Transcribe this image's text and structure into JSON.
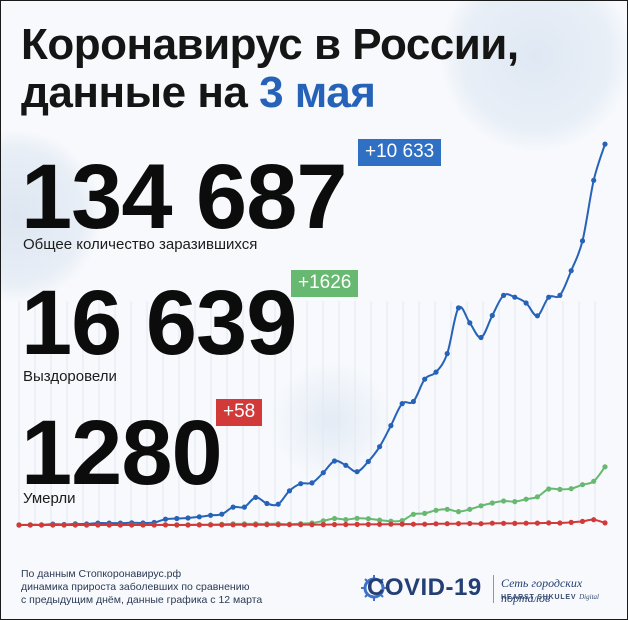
{
  "header": {
    "title_line1": "Коронавирус в России,",
    "title_line2_prefix": "данные на ",
    "title_line2_accent": "3 мая"
  },
  "stats": [
    {
      "value": "134 687",
      "delta": "+10 633",
      "label": "Общее количество заразившихся",
      "color": "#2f6fc4"
    },
    {
      "value": "16 639",
      "delta": "+1626",
      "label": "Выздоровели",
      "color": "#67b870"
    },
    {
      "value": "1280",
      "delta": "+58",
      "label": "Умерли",
      "color": "#d23a3a"
    }
  ],
  "footer": {
    "line1": "По данным Стопкоронавирус.рф",
    "line2": "динамика прироста заболевших по сравнению",
    "line3": "с предыдущим днём, данные графика с 12 марта"
  },
  "branding": {
    "logo_text": "COVID-19",
    "network": "Сеть городских порталов",
    "company": "HEARST SHKULEV",
    "company_suffix": "Digital"
  },
  "chart_data": {
    "type": "line",
    "title": "",
    "xlabel": "",
    "ylabel": "",
    "grid": false,
    "legend": "none",
    "x_start": "12 марта",
    "x_end": "3 мая",
    "ylim": [
      0,
      11000
    ],
    "series": [
      {
        "color": "#2663b8",
        "values": [
          0,
          6,
          6,
          25,
          14,
          30,
          27,
          52,
          54,
          53,
          61,
          57,
          71,
          163,
          182,
          196,
          228,
          270,
          302,
          500,
          501,
          771,
          601,
          582,
          954,
          1154,
          1175,
          1459,
          1786,
          1667,
          1489,
          1774,
          2186,
          2774,
          3388,
          3448,
          4070,
          4268,
          4785,
          6060,
          5642,
          5236,
          5849,
          6411,
          6361,
          6198,
          5841,
          6361,
          6411,
          7099,
          7933,
          9623,
          10633
        ]
      },
      {
        "color": "#67b870",
        "values": [
          0,
          0,
          1,
          2,
          0,
          3,
          1,
          0,
          1,
          1,
          3,
          4,
          4,
          6,
          3,
          5,
          9,
          12,
          21,
          30,
          30,
          30,
          30,
          35,
          21,
          40,
          55,
          115,
          182,
          150,
          187,
          175,
          137,
          106,
          124,
          300,
          324,
          411,
          439,
          375,
          438,
          536,
          615,
          670,
          654,
          721,
          788,
          1006,
          994,
          1013,
          1125,
          1219,
          1626
        ]
      },
      {
        "color": "#d23a3a",
        "values": [
          0,
          0,
          0,
          1,
          0,
          0,
          0,
          0,
          0,
          0,
          1,
          0,
          1,
          2,
          1,
          1,
          2,
          3,
          3,
          5,
          5,
          6,
          7,
          7,
          9,
          11,
          10,
          12,
          14,
          14,
          16,
          18,
          20,
          21,
          24,
          23,
          21,
          33,
          36,
          38,
          43,
          37,
          49,
          48,
          46,
          49,
          52,
          58,
          57,
          73,
          101,
          148,
          58
        ]
      }
    ]
  }
}
